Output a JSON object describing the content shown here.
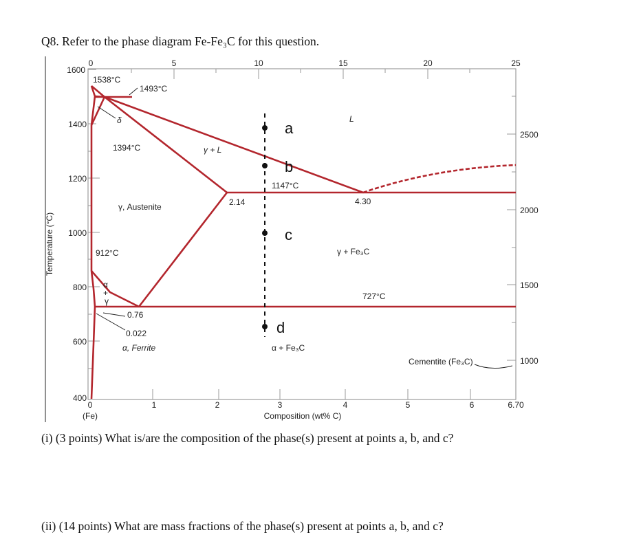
{
  "question": {
    "title": "Q8.  Refer to the phase diagram Fe-Fe₃C for this question.",
    "part1": "(i) (3 points) What is/are the composition of the phase(s) present at points a, b, and c?",
    "part2": "(ii) (14 points) What are mass fractions of the phase(s) present at points a, b, and c?"
  },
  "diagram": {
    "y_axis_title": "Temperature (°C)",
    "x_axis_title": "Composition (wt% C)",
    "x_origin_sub": "(Fe)",
    "bottom_ticks": [
      "0",
      "1",
      "2",
      "3",
      "4",
      "5",
      "6",
      "6.70"
    ],
    "top_ticks": [
      "0",
      "5",
      "10",
      "15",
      "20",
      "25"
    ],
    "left_ticks": [
      "1600",
      "1400",
      "1200",
      "1000",
      "800",
      "600",
      "400"
    ],
    "right_ticks": [
      "2500",
      "2000",
      "1500",
      "1000"
    ],
    "labels": {
      "t1538": "1538°C",
      "t1493": "1493°C",
      "delta": "δ",
      "t1394": "1394°C",
      "gamma_l": "γ + L",
      "l": "L",
      "t1147": "1147°C",
      "c214": "2.14",
      "c430": "4.30",
      "austenite": "γ, Austenite",
      "t912": "912°C",
      "gamma_fe3c": "γ + Fe₃C",
      "alpha": "α",
      "plus": "+",
      "gamma": "γ",
      "t727": "727°C",
      "c076": "0.76",
      "c0022": "0.022",
      "ferrite": "α, Ferrite",
      "alpha_fe3c": "α + Fe₃C",
      "cementite": "Cementite (Fe₃C)"
    },
    "points": {
      "a": "a",
      "b": "b",
      "c": "c",
      "d": "d"
    },
    "colors": {
      "phase_lines": "#b3262d",
      "frame": "#8a8a8a"
    }
  }
}
